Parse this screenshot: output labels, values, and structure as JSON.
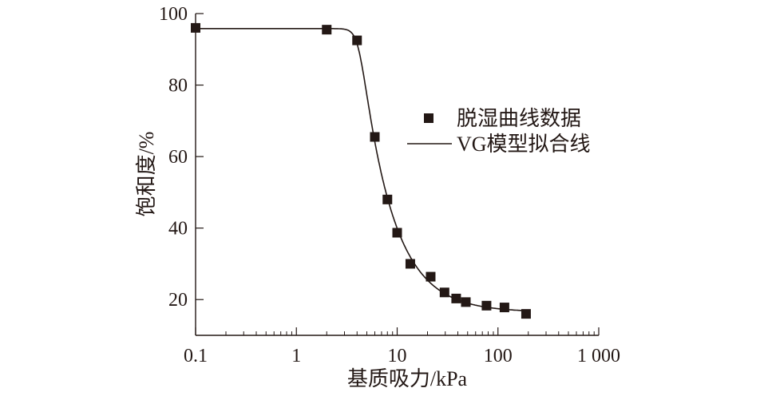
{
  "chart_data": {
    "type": "scatter",
    "title": "",
    "xlabel": "基质吸力/kPa",
    "ylabel": "饱和度/%",
    "xscale": "log",
    "xlim": [
      0.1,
      1000
    ],
    "ylim": [
      10,
      100
    ],
    "xticks": [
      0.1,
      1,
      10,
      100,
      1000
    ],
    "xtick_labels": [
      "0.1",
      "1",
      "10",
      "100",
      "1 000"
    ],
    "yticks": [
      20,
      40,
      60,
      80,
      100
    ],
    "ytick_labels": [
      "20",
      "40",
      "60",
      "80",
      "100"
    ],
    "grid": false,
    "legend_position": "center-right",
    "series": [
      {
        "name": "脱湿曲线数据",
        "kind": "scatter",
        "marker": "square",
        "color": "#231815",
        "x": [
          0.1,
          2,
          4,
          6,
          8,
          10,
          13.5,
          21.5,
          29.5,
          38.5,
          48,
          77,
          116,
          190
        ],
        "y": [
          96,
          95.5,
          92.5,
          65.5,
          48,
          38.7,
          30,
          26.4,
          22,
          20.3,
          19.3,
          18.3,
          17.8,
          16
        ]
      },
      {
        "name": "VG模型拟合线",
        "kind": "line",
        "color": "#231815",
        "model": {
          "Ss": 95.8,
          "Sr": 16.5,
          "alpha": 0.24,
          "n": 12,
          "m": 0.116
        },
        "x_range": [
          0.1,
          200
        ]
      }
    ]
  }
}
